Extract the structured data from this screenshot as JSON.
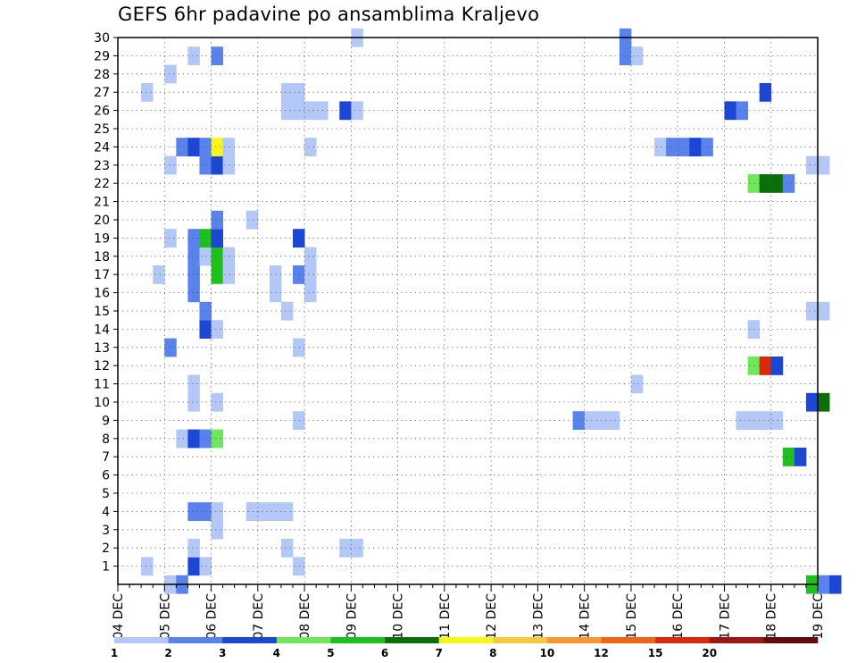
{
  "chart_data": {
    "type": "heatmap",
    "title": "GEFS 6hr padavine po ansamblima Kraljevo",
    "x_tick_labels": [
      "04 DEC",
      "05 DEC",
      "06 DEC",
      "07 DEC",
      "08 DEC",
      "09 DEC",
      "10 DEC",
      "11 DEC",
      "12 DEC",
      "13 DEC",
      "14 DEC",
      "15 DEC",
      "16 DEC",
      "17 DEC",
      "18 DEC",
      "19 DEC"
    ],
    "y_tick_labels": [
      1,
      2,
      3,
      4,
      5,
      6,
      7,
      8,
      9,
      10,
      11,
      12,
      13,
      14,
      15,
      16,
      17,
      18,
      19,
      20,
      21,
      22,
      23,
      24,
      25,
      26,
      27,
      28,
      29,
      30
    ],
    "y_range": [
      0,
      30
    ],
    "time_step_hours": 6,
    "grid": "dotted",
    "colorbar_labels": [
      "1",
      "2",
      "3",
      "4",
      "5",
      "6",
      "7",
      "8",
      "10",
      "12",
      "15",
      "20"
    ],
    "colorbar_colors": [
      "#b4c8f8",
      "#5a82ec",
      "#1c46d6",
      "#6ee85a",
      "#1ec01e",
      "#0a6e0a",
      "#f8f818",
      "#fac83c",
      "#fa9632",
      "#f06414",
      "#dc280a",
      "#a01414",
      "#640a0a"
    ],
    "cells": [
      {
        "m": 0,
        "t": "05 DEC 00Z",
        "v": 1
      },
      {
        "m": 0,
        "t": "05 DEC 06Z",
        "v": 2
      },
      {
        "m": 0,
        "t": "18 DEC 18Z",
        "v": 5
      },
      {
        "m": 0,
        "t": "19 DEC 00Z",
        "v": 2
      },
      {
        "m": 0,
        "t": "19 DEC 06Z",
        "v": 3
      },
      {
        "m": 1,
        "t": "04 DEC 12Z",
        "v": 1
      },
      {
        "m": 1,
        "t": "05 DEC 12Z",
        "v": 3
      },
      {
        "m": 1,
        "t": "05 DEC 18Z",
        "v": 1
      },
      {
        "m": 1,
        "t": "07 DEC 18Z",
        "v": 1
      },
      {
        "m": 2,
        "t": "05 DEC 12Z",
        "v": 1
      },
      {
        "m": 2,
        "t": "07 DEC 12Z",
        "v": 1
      },
      {
        "m": 2,
        "t": "08 DEC 18Z",
        "v": 1
      },
      {
        "m": 2,
        "t": "09 DEC 00Z",
        "v": 1
      },
      {
        "m": 3,
        "t": "06 DEC 00Z",
        "v": 1
      },
      {
        "m": 4,
        "t": "05 DEC 12Z",
        "v": 2
      },
      {
        "m": 4,
        "t": "05 DEC 18Z",
        "v": 2
      },
      {
        "m": 4,
        "t": "06 DEC 00Z",
        "v": 1
      },
      {
        "m": 4,
        "t": "06 DEC 18Z",
        "v": 1
      },
      {
        "m": 4,
        "t": "07 DEC 00Z",
        "v": 1
      },
      {
        "m": 4,
        "t": "07 DEC 06Z",
        "v": 1
      },
      {
        "m": 4,
        "t": "07 DEC 12Z",
        "v": 1
      },
      {
        "m": 7,
        "t": "18 DEC 06Z",
        "v": 5
      },
      {
        "m": 7,
        "t": "18 DEC 12Z",
        "v": 3
      },
      {
        "m": 8,
        "t": "05 DEC 06Z",
        "v": 1
      },
      {
        "m": 8,
        "t": "05 DEC 12Z",
        "v": 3
      },
      {
        "m": 8,
        "t": "05 DEC 18Z",
        "v": 2
      },
      {
        "m": 8,
        "t": "06 DEC 00Z",
        "v": 4
      },
      {
        "m": 9,
        "t": "07 DEC 18Z",
        "v": 1
      },
      {
        "m": 9,
        "t": "13 DEC 18Z",
        "v": 2
      },
      {
        "m": 9,
        "t": "14 DEC 00Z",
        "v": 1
      },
      {
        "m": 9,
        "t": "14 DEC 06Z",
        "v": 1
      },
      {
        "m": 9,
        "t": "14 DEC 12Z",
        "v": 1
      },
      {
        "m": 9,
        "t": "17 DEC 06Z",
        "v": 1
      },
      {
        "m": 9,
        "t": "17 DEC 12Z",
        "v": 1
      },
      {
        "m": 9,
        "t": "17 DEC 18Z",
        "v": 1
      },
      {
        "m": 9,
        "t": "18 DEC 00Z",
        "v": 1
      },
      {
        "m": 10,
        "t": "06 DEC 00Z",
        "v": 1
      },
      {
        "m": 10,
        "t": "05 DEC 12Z",
        "v": 1
      },
      {
        "m": 10,
        "t": "18 DEC 18Z",
        "v": 3
      },
      {
        "m": 10,
        "t": "19 DEC 00Z",
        "v": 6
      },
      {
        "m": 11,
        "t": "05 DEC 12Z",
        "v": 1
      },
      {
        "m": 11,
        "t": "15 DEC 00Z",
        "v": 1
      },
      {
        "m": 12,
        "t": "17 DEC 12Z",
        "v": 4
      },
      {
        "m": 12,
        "t": "17 DEC 18Z",
        "v": 15
      },
      {
        "m": 12,
        "t": "18 DEC 00Z",
        "v": 3
      },
      {
        "m": 13,
        "t": "05 DEC 00Z",
        "v": 2
      },
      {
        "m": 13,
        "t": "07 DEC 18Z",
        "v": 1
      },
      {
        "m": 14,
        "t": "05 DEC 18Z",
        "v": 3
      },
      {
        "m": 14,
        "t": "06 DEC 00Z",
        "v": 1
      },
      {
        "m": 14,
        "t": "17 DEC 12Z",
        "v": 1
      },
      {
        "m": 15,
        "t": "05 DEC 18Z",
        "v": 2
      },
      {
        "m": 15,
        "t": "07 DEC 12Z",
        "v": 1
      },
      {
        "m": 15,
        "t": "18 DEC 18Z",
        "v": 1
      },
      {
        "m": 15,
        "t": "19 DEC 00Z",
        "v": 1
      },
      {
        "m": 16,
        "t": "05 DEC 12Z",
        "v": 2
      },
      {
        "m": 16,
        "t": "07 DEC 06Z",
        "v": 1
      },
      {
        "m": 16,
        "t": "08 DEC 00Z",
        "v": 1
      },
      {
        "m": 17,
        "t": "04 DEC 18Z",
        "v": 1
      },
      {
        "m": 17,
        "t": "05 DEC 12Z",
        "v": 2
      },
      {
        "m": 17,
        "t": "06 DEC 00Z",
        "v": 5
      },
      {
        "m": 17,
        "t": "06 DEC 06Z",
        "v": 1
      },
      {
        "m": 17,
        "t": "07 DEC 06Z",
        "v": 1
      },
      {
        "m": 17,
        "t": "07 DEC 18Z",
        "v": 2
      },
      {
        "m": 17,
        "t": "08 DEC 00Z",
        "v": 1
      },
      {
        "m": 18,
        "t": "05 DEC 12Z",
        "v": 2
      },
      {
        "m": 18,
        "t": "05 DEC 18Z",
        "v": 1
      },
      {
        "m": 18,
        "t": "06 DEC 00Z",
        "v": 5
      },
      {
        "m": 18,
        "t": "06 DEC 06Z",
        "v": 1
      },
      {
        "m": 18,
        "t": "08 DEC 00Z",
        "v": 1
      },
      {
        "m": 19,
        "t": "05 DEC 00Z",
        "v": 1
      },
      {
        "m": 19,
        "t": "05 DEC 12Z",
        "v": 2
      },
      {
        "m": 19,
        "t": "05 DEC 18Z",
        "v": 5
      },
      {
        "m": 19,
        "t": "06 DEC 00Z",
        "v": 3
      },
      {
        "m": 19,
        "t": "07 DEC 18Z",
        "v": 3
      },
      {
        "m": 20,
        "t": "06 DEC 00Z",
        "v": 2
      },
      {
        "m": 20,
        "t": "06 DEC 18Z",
        "v": 1
      },
      {
        "m": 22,
        "t": "17 DEC 12Z",
        "v": 4
      },
      {
        "m": 22,
        "t": "17 DEC 18Z",
        "v": 6
      },
      {
        "m": 22,
        "t": "18 DEC 00Z",
        "v": 6
      },
      {
        "m": 22,
        "t": "18 DEC 06Z",
        "v": 2
      },
      {
        "m": 23,
        "t": "05 DEC 00Z",
        "v": 1
      },
      {
        "m": 23,
        "t": "05 DEC 18Z",
        "v": 2
      },
      {
        "m": 23,
        "t": "06 DEC 00Z",
        "v": 3
      },
      {
        "m": 23,
        "t": "06 DEC 06Z",
        "v": 1
      },
      {
        "m": 23,
        "t": "18 DEC 18Z",
        "v": 1
      },
      {
        "m": 23,
        "t": "19 DEC 00Z",
        "v": 1
      },
      {
        "m": 24,
        "t": "05 DEC 06Z",
        "v": 2
      },
      {
        "m": 24,
        "t": "05 DEC 12Z",
        "v": 3
      },
      {
        "m": 24,
        "t": "05 DEC 18Z",
        "v": 2
      },
      {
        "m": 24,
        "t": "06 DEC 00Z",
        "v": 7
      },
      {
        "m": 24,
        "t": "06 DEC 06Z",
        "v": 1
      },
      {
        "m": 24,
        "t": "08 DEC 00Z",
        "v": 1
      },
      {
        "m": 24,
        "t": "15 DEC 12Z",
        "v": 1
      },
      {
        "m": 24,
        "t": "15 DEC 18Z",
        "v": 2
      },
      {
        "m": 24,
        "t": "16 DEC 00Z",
        "v": 2
      },
      {
        "m": 24,
        "t": "16 DEC 06Z",
        "v": 3
      },
      {
        "m": 24,
        "t": "16 DEC 12Z",
        "v": 2
      },
      {
        "m": 26,
        "t": "07 DEC 12Z",
        "v": 1
      },
      {
        "m": 26,
        "t": "07 DEC 18Z",
        "v": 1
      },
      {
        "m": 26,
        "t": "08 DEC 00Z",
        "v": 1
      },
      {
        "m": 26,
        "t": "08 DEC 06Z",
        "v": 1
      },
      {
        "m": 26,
        "t": "08 DEC 18Z",
        "v": 3
      },
      {
        "m": 26,
        "t": "09 DEC 00Z",
        "v": 1
      },
      {
        "m": 26,
        "t": "17 DEC 00Z",
        "v": 3
      },
      {
        "m": 26,
        "t": "17 DEC 06Z",
        "v": 2
      },
      {
        "m": 27,
        "t": "04 DEC 12Z",
        "v": 1
      },
      {
        "m": 27,
        "t": "07 DEC 12Z",
        "v": 1
      },
      {
        "m": 27,
        "t": "07 DEC 18Z",
        "v": 1
      },
      {
        "m": 27,
        "t": "17 DEC 18Z",
        "v": 3
      },
      {
        "m": 28,
        "t": "05 DEC 00Z",
        "v": 1
      },
      {
        "m": 29,
        "t": "05 DEC 12Z",
        "v": 1
      },
      {
        "m": 29,
        "t": "06 DEC 00Z",
        "v": 2
      },
      {
        "m": 29,
        "t": "14 DEC 18Z",
        "v": 2
      },
      {
        "m": 29,
        "t": "15 DEC 00Z",
        "v": 1
      },
      {
        "m": 30,
        "t": "09 DEC 00Z",
        "v": 1
      },
      {
        "m": 30,
        "t": "14 DEC 18Z",
        "v": 2
      }
    ]
  }
}
